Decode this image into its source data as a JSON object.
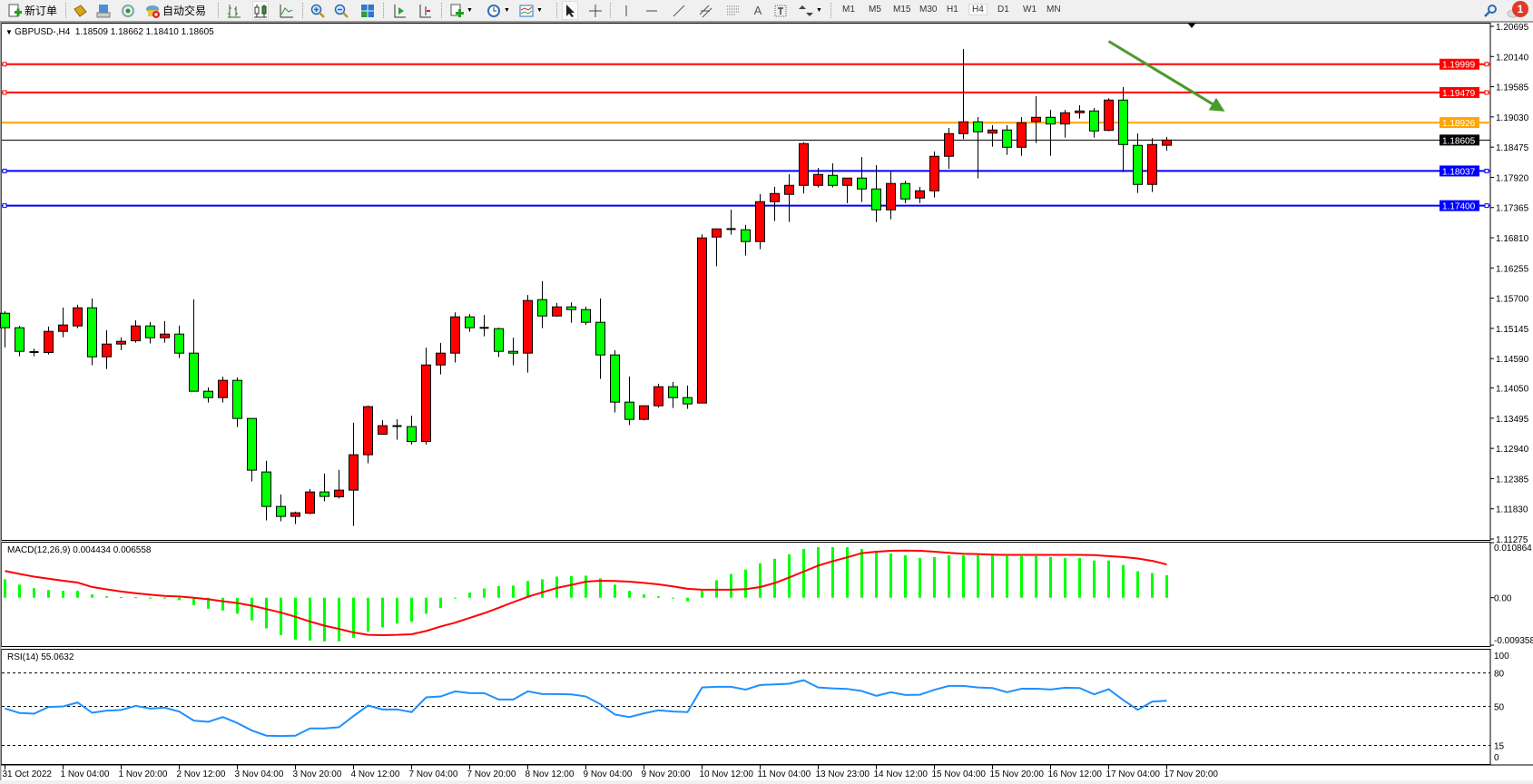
{
  "toolbar": {
    "new_order_label": "新订单",
    "auto_trading_label": "自动交易",
    "icons": [
      "new-order-icon",
      "market-watch-icon",
      "data-window-icon",
      "signals-icon",
      "auto-trading-icon",
      "bar-chart-icon",
      "candlestick-icon",
      "line-chart-icon",
      "zoom-in-icon",
      "zoom-out-icon",
      "tile-windows-icon",
      "auto-scroll-icon",
      "chart-shift-icon",
      "indicators-icon",
      "periods-icon",
      "templates-icon",
      "cursor-icon",
      "crosshair-icon",
      "vertical-line-icon",
      "horizontal-line-icon",
      "trendline-icon",
      "equidistant-channel-icon",
      "fibonacci-icon",
      "text-icon",
      "text-label-icon",
      "arrows-icon",
      "search-icon",
      "messages-icon"
    ],
    "timeframes": [
      "M1",
      "M5",
      "M15",
      "M30",
      "H1",
      "H4",
      "D1",
      "W1",
      "MN"
    ],
    "active_timeframe": "H4",
    "notification_count": "1"
  },
  "chart": {
    "header": "GBPUSD-,H4  1.18509 1.18662 1.18410 1.18605",
    "symbol": "GBPUSD-",
    "timeframe": "H4",
    "ohlc": {
      "open": "1.18509",
      "high": "1.18662",
      "low": "1.18410",
      "close": "1.18605"
    },
    "current_price": "1.18605",
    "colors": {
      "bull": "#ff0000",
      "bear": "#00ff00",
      "wick": "#000000",
      "arrow": "#4a9a2e",
      "macd_hist": "#00ff00",
      "macd_signal": "#ff0000",
      "rsi": "#1e90ff"
    }
  },
  "chart_data": [
    {
      "type": "candlestick",
      "title": "GBPUSD-,H4",
      "ylim": [
        1.11275,
        1.20695
      ],
      "y_ticks": [
        "1.20695",
        "1.20140",
        "1.19585",
        "1.19030",
        "1.18475",
        "1.17920",
        "1.17365",
        "1.16810",
        "1.16255",
        "1.15700",
        "1.15145",
        "1.14590",
        "1.14050",
        "1.13495",
        "1.12940",
        "1.12385",
        "1.11830",
        "1.11275"
      ],
      "x_tick_labels": [
        "31 Oct 2022",
        "1 Nov 04:00",
        "1 Nov 20:00",
        "2 Nov 12:00",
        "3 Nov 04:00",
        "3 Nov 20:00",
        "4 Nov 12:00",
        "7 Nov 04:00",
        "7 Nov 20:00",
        "8 Nov 12:00",
        "9 Nov 04:00",
        "9 Nov 20:00",
        "10 Nov 12:00",
        "11 Nov 04:00",
        "13 Nov 23:00",
        "14 Nov 12:00",
        "15 Nov 04:00",
        "15 Nov 20:00",
        "16 Nov 12:00",
        "17 Nov 04:00",
        "17 Nov 20:00"
      ],
      "x_tick_every_bars": 4,
      "ohlc": [
        [
          1.15423,
          1.15462,
          1.14795,
          1.15157
        ],
        [
          1.15157,
          1.1519,
          1.14633,
          1.14723
        ],
        [
          1.1471,
          1.14773,
          1.14633,
          1.14705
        ],
        [
          1.147,
          1.15178,
          1.14667,
          1.1509
        ],
        [
          1.1509,
          1.15528,
          1.14983,
          1.15207
        ],
        [
          1.1519,
          1.15578,
          1.1515,
          1.15523
        ],
        [
          1.15523,
          1.15695,
          1.14467,
          1.14623
        ],
        [
          1.14623,
          1.15112,
          1.144,
          1.14857
        ],
        [
          1.14857,
          1.14978,
          1.14745,
          1.14907
        ],
        [
          1.14917,
          1.15295,
          1.14883,
          1.1519
        ],
        [
          1.1519,
          1.15262,
          1.14867,
          1.14973
        ],
        [
          1.14973,
          1.15278,
          1.14883,
          1.1504
        ],
        [
          1.1504,
          1.15195,
          1.146,
          1.1469
        ],
        [
          1.1469,
          1.15678,
          1.13985,
          1.1399
        ],
        [
          1.1399,
          1.14062,
          1.13783,
          1.13873
        ],
        [
          1.13873,
          1.14257,
          1.13783,
          1.1419
        ],
        [
          1.1419,
          1.14245,
          1.13333,
          1.1349
        ],
        [
          1.1349,
          1.13495,
          1.12333,
          1.1254
        ],
        [
          1.12507,
          1.12712,
          1.11617,
          1.11873
        ],
        [
          1.11873,
          1.12095,
          1.116,
          1.1169
        ],
        [
          1.1169,
          1.11778,
          1.1155,
          1.11757
        ],
        [
          1.1175,
          1.12195,
          1.11733,
          1.1214
        ],
        [
          1.1214,
          1.12478,
          1.11967,
          1.12057
        ],
        [
          1.1205,
          1.12545,
          1.12017,
          1.12173
        ],
        [
          1.12173,
          1.13412,
          1.11517,
          1.12823
        ],
        [
          1.12823,
          1.13728,
          1.12667,
          1.13707
        ],
        [
          1.132,
          1.13457,
          1.13195,
          1.13357
        ],
        [
          1.1335,
          1.13473,
          1.131,
          1.13345
        ],
        [
          1.1334,
          1.1354,
          1.13012,
          1.13067
        ],
        [
          1.13067,
          1.1479,
          1.13012,
          1.14473
        ],
        [
          1.14473,
          1.14878,
          1.143,
          1.1469
        ],
        [
          1.1469,
          1.1544,
          1.14517,
          1.15357
        ],
        [
          1.15357,
          1.15407,
          1.15083,
          1.15157
        ],
        [
          1.15155,
          1.1539,
          1.15,
          1.1515
        ],
        [
          1.1514,
          1.15157,
          1.14617,
          1.14723
        ],
        [
          1.14723,
          1.14973,
          1.14467,
          1.1469
        ],
        [
          1.1469,
          1.15757,
          1.14333,
          1.15657
        ],
        [
          1.15673,
          1.16012,
          1.1515,
          1.15373
        ],
        [
          1.15373,
          1.15612,
          1.15357,
          1.1554
        ],
        [
          1.1554,
          1.15623,
          1.1525,
          1.1549
        ],
        [
          1.1549,
          1.15545,
          1.15207,
          1.15257
        ],
        [
          1.15257,
          1.15695,
          1.14217,
          1.14657
        ],
        [
          1.14657,
          1.14745,
          1.136,
          1.1379
        ],
        [
          1.1379,
          1.14262,
          1.13367,
          1.13473
        ],
        [
          1.13473,
          1.1373,
          1.13457,
          1.13723
        ],
        [
          1.13723,
          1.14128,
          1.1369,
          1.14073
        ],
        [
          1.14073,
          1.14162,
          1.13683,
          1.13873
        ],
        [
          1.13873,
          1.14095,
          1.13667,
          1.13757
        ],
        [
          1.13773,
          1.16873,
          1.1377,
          1.16807
        ],
        [
          1.16823,
          1.16978,
          1.16287,
          1.16973
        ],
        [
          1.1697,
          1.17328,
          1.16867,
          1.16965
        ],
        [
          1.16957,
          1.17045,
          1.16483,
          1.1674
        ],
        [
          1.1674,
          1.17612,
          1.166,
          1.17473
        ],
        [
          1.17473,
          1.17745,
          1.17117,
          1.17623
        ],
        [
          1.17607,
          1.17978,
          1.171,
          1.17773
        ],
        [
          1.17773,
          1.18567,
          1.17623,
          1.1854
        ],
        [
          1.17773,
          1.18095,
          1.17733,
          1.17973
        ],
        [
          1.17957,
          1.18178,
          1.17733,
          1.17773
        ],
        [
          1.17773,
          1.1791,
          1.17445,
          1.17907
        ],
        [
          1.17907,
          1.18295,
          1.17467,
          1.17707
        ],
        [
          1.17707,
          1.18145,
          1.171,
          1.17323
        ],
        [
          1.17323,
          1.18028,
          1.1715,
          1.17807
        ],
        [
          1.17807,
          1.17857,
          1.17445,
          1.17523
        ],
        [
          1.1754,
          1.17745,
          1.17445,
          1.17673
        ],
        [
          1.17673,
          1.18395,
          1.1755,
          1.18307
        ],
        [
          1.18307,
          1.18828,
          1.18078,
          1.18723
        ],
        [
          1.18723,
          1.20278,
          1.18623,
          1.1894
        ],
        [
          1.1894,
          1.19028,
          1.179,
          1.18757
        ],
        [
          1.18733,
          1.18878,
          1.18483,
          1.1879
        ],
        [
          1.1879,
          1.18878,
          1.18333,
          1.18473
        ],
        [
          1.18473,
          1.19028,
          1.18317,
          1.18923
        ],
        [
          1.18945,
          1.19412,
          1.1855,
          1.19023
        ],
        [
          1.19023,
          1.19162,
          1.18317,
          1.189
        ],
        [
          1.189,
          1.19162,
          1.1865,
          1.19107
        ],
        [
          1.19107,
          1.19245,
          1.19,
          1.1914
        ],
        [
          1.1914,
          1.19195,
          1.1865,
          1.18773
        ],
        [
          1.18783,
          1.19373,
          1.18767,
          1.1934
        ],
        [
          1.1934,
          1.19578,
          1.18017,
          1.18523
        ],
        [
          1.18507,
          1.18728,
          1.17633,
          1.1779
        ],
        [
          1.1779,
          1.1864,
          1.1765,
          1.18523
        ],
        [
          1.18509,
          1.18662,
          1.1841,
          1.18605
        ]
      ],
      "horizontal_lines": [
        {
          "price": 1.19999,
          "label": "1.19999",
          "color": "#ff0000"
        },
        {
          "price": 1.19479,
          "label": "1.19479",
          "color": "#ff0000"
        },
        {
          "price": 1.18926,
          "label": "1.18926",
          "color": "#ffa500"
        },
        {
          "price": 1.18037,
          "label": "1.18037",
          "color": "#0000ff"
        },
        {
          "price": 1.174,
          "label": "1.17400",
          "color": "#0000ff"
        }
      ],
      "bid_line": {
        "price": 1.18605,
        "label": "1.18605",
        "color": "#000000"
      },
      "annotations": [
        {
          "type": "arrow",
          "direction": "down-right",
          "color": "#4a9a2e",
          "from": {
            "bar": 76,
            "price": 1.2042
          },
          "to": {
            "bar": 84,
            "price": 1.1913
          }
        }
      ]
    },
    {
      "type": "bar+line",
      "title": "MACD(12,26,9) 0.004434 0.006558",
      "ylim": [
        -0.009358,
        0.010864
      ],
      "y_ticks": [
        "0.010864",
        "0.00",
        "-0.009358"
      ],
      "series": [
        {
          "name": "MACD",
          "type": "bar",
          "values": [
            0.00363,
            0.00258,
            0.00188,
            0.00152,
            0.00135,
            0.00135,
            0.00064,
            0.00029,
            0.00012,
            0.0001,
            -5e-05,
            -5e-05,
            -0.00047,
            -0.00147,
            -0.00217,
            -0.00252,
            -0.00316,
            -0.00445,
            -0.00604,
            -0.00738,
            -0.00826,
            -0.00844,
            -0.00861,
            -0.00861,
            -0.00791,
            -0.00668,
            -0.00586,
            -0.0051,
            -0.00475,
            -0.00316,
            -0.00199,
            -0.00012,
            0.001,
            0.00182,
            0.00229,
            0.0024,
            0.00328,
            0.00363,
            0.00416,
            0.00428,
            0.00434,
            0.00381,
            0.00258,
            0.00135,
            0.00064,
            0.00029,
            -5e-05,
            -0.0007,
            0.00135,
            0.00346,
            0.00469,
            0.00557,
            0.0068,
            0.00768,
            0.00856,
            0.00961,
            0.00996,
            0.00996,
            0.00996,
            0.00961,
            0.00908,
            0.00873,
            0.00838,
            0.00785,
            0.00803,
            0.00838,
            0.00838,
            0.00838,
            0.00838,
            0.0082,
            0.0082,
            0.0082,
            0.00803,
            0.00785,
            0.00785,
            0.00733,
            0.00733,
            0.00645,
            0.00522,
            0.00486,
            0.004434
          ]
        },
        {
          "name": "Signal",
          "type": "line",
          "values": [
            0.00527,
            0.00469,
            0.00416,
            0.00375,
            0.00334,
            0.00299,
            0.00211,
            0.00164,
            0.00123,
            0.00088,
            0.00059,
            0.00035,
            0.00023,
            0,
            -0.0003,
            -0.0007,
            -0.00105,
            -0.00158,
            -0.00223,
            -0.00293,
            -0.00375,
            -0.00469,
            -0.00551,
            -0.00615,
            -0.00686,
            -0.00733,
            -0.00738,
            -0.00733,
            -0.00721,
            -0.00656,
            -0.00568,
            -0.00492,
            -0.00398,
            -0.00305,
            -0.00199,
            -0.00088,
            0.00018,
            0.00105,
            0.00193,
            0.00252,
            0.00316,
            0.00334,
            0.0033,
            0.00316,
            0.00293,
            0.00264,
            0.00223,
            0.00176,
            0.00158,
            0.00158,
            0.00158,
            0.0017,
            0.0021,
            0.0029,
            0.00398,
            0.00516,
            0.00633,
            0.00721,
            0.00797,
            0.00879,
            0.00908,
            0.00926,
            0.0093,
            0.00926,
            0.00908,
            0.00885,
            0.00867,
            0.0086,
            0.0085,
            0.00844,
            0.00844,
            0.00844,
            0.00844,
            0.00844,
            0.00844,
            0.0084,
            0.0082,
            0.00803,
            0.00774,
            0.00727,
            0.006558
          ]
        }
      ]
    },
    {
      "type": "line",
      "title": "RSI(14) 55.0632",
      "ylim": [
        0,
        100
      ],
      "y_ticks": [
        "100",
        "80",
        "50",
        "15",
        "0"
      ],
      "levels": [
        80,
        50,
        15
      ],
      "series": [
        {
          "name": "RSI(14)",
          "values": [
            48.1,
            44.1,
            43.5,
            49.5,
            50,
            53.5,
            44.3,
            46.2,
            46.8,
            50.5,
            48.1,
            48.9,
            45.4,
            37.3,
            36.2,
            40.5,
            35.1,
            28.4,
            23.8,
            23.5,
            23.8,
            30.3,
            30.3,
            31.4,
            41.4,
            50.8,
            47.3,
            47.3,
            44.9,
            58.1,
            58.9,
            63.5,
            61.9,
            61.9,
            56.2,
            56.2,
            63.5,
            61.1,
            61.1,
            60.8,
            58.9,
            52,
            42.7,
            40.5,
            43.8,
            46.5,
            45.4,
            44.9,
            67,
            67.6,
            67.6,
            65.1,
            69.2,
            69.7,
            70.3,
            73.5,
            67,
            66.2,
            65.7,
            63.8,
            59.5,
            62.7,
            60.3,
            60.5,
            64.9,
            68.4,
            68.4,
            67,
            66.5,
            62.7,
            65.9,
            65.9,
            65.1,
            66.8,
            66.5,
            60.8,
            65.4,
            55.7,
            47,
            54.3,
            55.0632
          ]
        }
      ]
    }
  ]
}
